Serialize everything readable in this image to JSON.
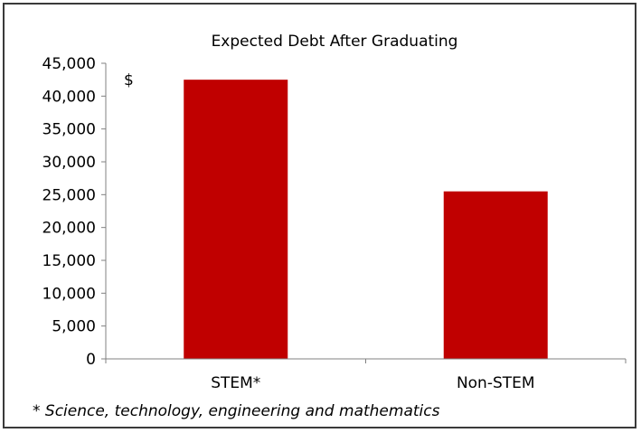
{
  "chart_data": {
    "type": "bar",
    "title": "Expected Debt After Graduating",
    "ylabel": "$",
    "xlabel": "",
    "categories": [
      "STEM*",
      "Non-STEM"
    ],
    "values": [
      42500,
      25500
    ],
    "ylim": [
      0,
      45000
    ],
    "yticks": [
      "0",
      "5,000",
      "10,000",
      "15,000",
      "20,000",
      "25,000",
      "30,000",
      "35,000",
      "40,000",
      "45,000"
    ],
    "grid": false,
    "legend": "none",
    "bar_color": "#c00000",
    "footnote": "* Science, technology, engineering and mathematics"
  }
}
